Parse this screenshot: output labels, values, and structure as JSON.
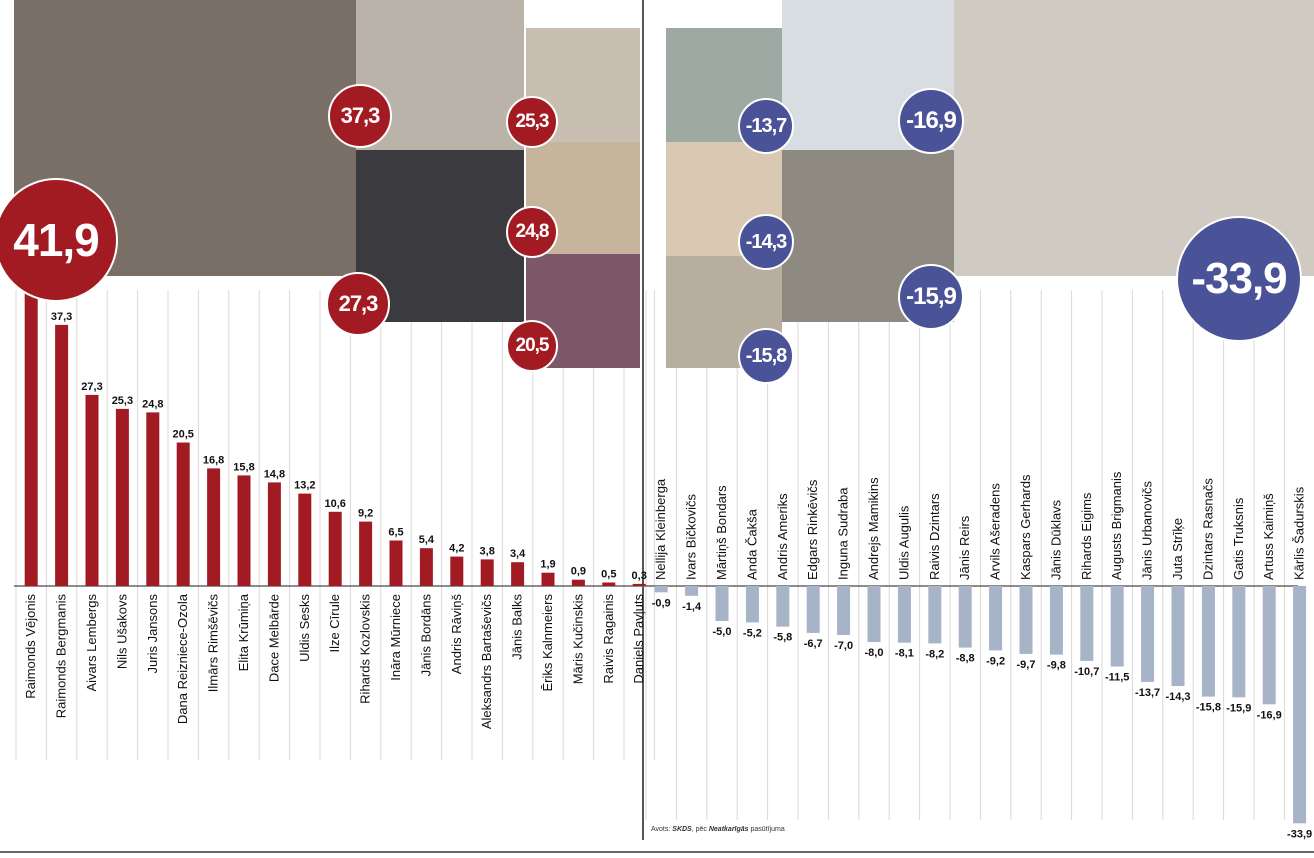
{
  "chart_data": {
    "type": "bar",
    "groups": [
      {
        "name": "positive",
        "categories": [
          "Raimonds Vējonis",
          "Raimonds Bergmanis",
          "Aivars Lembergs",
          "Nils Ušakovs",
          "Juris Jansons",
          "Dana Reizniece-Ozola",
          "Ilmārs Rimšēvičs",
          "Elita Krūmiņa",
          "Dace Melbārde",
          "Uldis Sesks",
          "Ilze Cīrule",
          "Rihards Kozlovskis",
          "Ināra Mūrniece",
          "Jānis Bordāns",
          "Andris Rāviņš",
          "Aleksandrs Bartaševičs",
          "Jānis Balks",
          "Ēriks Kalnmeiers",
          "Māris Kučinskis",
          "Raivis Ragainis",
          "Daniels Pavļuts"
        ],
        "values": [
          41.9,
          37.3,
          27.3,
          25.3,
          24.8,
          20.5,
          16.8,
          15.8,
          14.8,
          13.2,
          10.6,
          9.2,
          6.5,
          5.4,
          4.2,
          3.8,
          3.4,
          1.9,
          0.9,
          0.5,
          0.3
        ],
        "labels": [
          "",
          "37,3",
          "27,3",
          "25,3",
          "24,8",
          "20,5",
          "16,8",
          "15,8",
          "14,8",
          "13,2",
          "10,6",
          "9,2",
          "6,5",
          "5,4",
          "4,2",
          "3,8",
          "3,4",
          "1,9",
          "0,9",
          "0,5",
          "0,3"
        ],
        "color": "#a31b22"
      },
      {
        "name": "negative",
        "categories": [
          "Nellija Kleinberga",
          "Ivars Bičkovičs",
          "Mārtiņš Bondars",
          "Anda Čakša",
          "Andris Ameriks",
          "Edgars Rinkēvičs",
          "Inguna Sudraba",
          "Andrejs Mamikins",
          "Uldis Augulis",
          "Raivis Dzintars",
          "Jānis Reirs",
          "Arvils Ašeradens",
          "Kaspars Gerhards",
          "Jānis Dūklavs",
          "Rihards Eigims",
          "Augusts Brigmanis",
          "Jānis Urbanovičs",
          "Juta Strīķe",
          "Dzintars Rasnačs",
          "Gatis Truksnis",
          "Artuss Kaimiņš",
          "Kārlis Šadurskis"
        ],
        "values": [
          -0.9,
          -1.4,
          -5.0,
          -5.2,
          -5.8,
          -6.7,
          -7.0,
          -8.0,
          -8.1,
          -8.2,
          -8.8,
          -9.2,
          -9.7,
          -9.8,
          -10.7,
          -11.5,
          -13.7,
          -14.3,
          -15.8,
          -15.9,
          -16.9,
          -33.9
        ],
        "labels": [
          "-0,9",
          "-1,4",
          "-5,0",
          "-5,2",
          "-5,8",
          "-6,7",
          "-7,0",
          "-8,0",
          "-8,1",
          "-8,2",
          "-8,8",
          "-9,2",
          "-9,7",
          "-9,8",
          "-10,7",
          "-11,5",
          "-13,7",
          "-14,3",
          "-15,8",
          "-15,9",
          "-16,9",
          "-33,9"
        ],
        "color": "#a7b3c6"
      }
    ],
    "badges": [
      {
        "text": "41,9",
        "kind": "pos"
      },
      {
        "text": "37,3",
        "kind": "pos"
      },
      {
        "text": "25,3",
        "kind": "pos"
      },
      {
        "text": "27,3",
        "kind": "pos"
      },
      {
        "text": "24,8",
        "kind": "pos"
      },
      {
        "text": "20,5",
        "kind": "pos"
      },
      {
        "text": "-13,7",
        "kind": "neg"
      },
      {
        "text": "-16,9",
        "kind": "neg"
      },
      {
        "text": "-14,3",
        "kind": "neg"
      },
      {
        "text": "-15,9",
        "kind": "neg"
      },
      {
        "text": "-15,8",
        "kind": "neg"
      },
      {
        "text": "-33,9",
        "kind": "neg"
      }
    ],
    "grid": true,
    "colors": {
      "positive": "#a31b22",
      "negative_bar": "#a7b3c6",
      "negative_badge": "#4a5397",
      "grid": "#d8d8d8",
      "axis": "#666666"
    }
  },
  "source": {
    "prefix": "Avots: ",
    "org": "SKDS",
    "mid": ", pēc ",
    "paper": "Neatkarīgās",
    "suffix": " pasūtījuma"
  }
}
